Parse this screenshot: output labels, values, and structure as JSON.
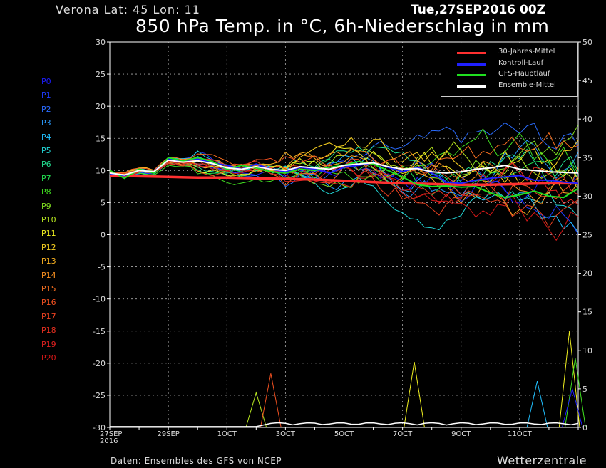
{
  "header": {
    "station": "Verona   Lat: 45 Lon: 11",
    "date": "Tue,27SEP2016 00Z",
    "title": "850 hPa Temp. in °C, 6h-Niederschlag in mm"
  },
  "footer": {
    "source": "Daten: Ensembles des GFS von NCEP",
    "brand": "Wetterzentrale"
  },
  "members": [
    {
      "label": "P0",
      "color": "#1c1cff"
    },
    {
      "label": "P1",
      "color": "#1f3cff"
    },
    {
      "label": "P2",
      "color": "#2a6cff"
    },
    {
      "label": "P3",
      "color": "#2a9cff"
    },
    {
      "label": "P4",
      "color": "#20c0ff"
    },
    {
      "label": "P5",
      "color": "#22d8d8"
    },
    {
      "label": "P6",
      "color": "#22e090"
    },
    {
      "label": "P7",
      "color": "#22e050"
    },
    {
      "label": "P8",
      "color": "#40e020"
    },
    {
      "label": "P9",
      "color": "#80e020"
    },
    {
      "label": "P10",
      "color": "#b8e820"
    },
    {
      "label": "P11",
      "color": "#f0f020"
    },
    {
      "label": "P12",
      "color": "#f8d020"
    },
    {
      "label": "P13",
      "color": "#f8b020"
    },
    {
      "label": "P14",
      "color": "#f89020"
    },
    {
      "label": "P15",
      "color": "#f87020"
    },
    {
      "label": "P16",
      "color": "#f05020"
    },
    {
      "label": "P17",
      "color": "#e84020"
    },
    {
      "label": "P18",
      "color": "#e83020"
    },
    {
      "label": "P19",
      "color": "#e02020"
    },
    {
      "label": "P20",
      "color": "#d81818"
    }
  ],
  "legend": [
    {
      "label": "30-Jahres-Mittel",
      "color": "#ff3030"
    },
    {
      "label": "Kontroll-Lauf",
      "color": "#2020ff"
    },
    {
      "label": "GFS-Hauptlauf",
      "color": "#20e020"
    },
    {
      "label": "Ensemble-Mittel",
      "color": "#ffffff"
    }
  ],
  "chart_data": {
    "type": "line",
    "x_ticks": [
      "27SEP\n2016",
      "29SEP",
      "1OCT",
      "3OCT",
      "5OCT",
      "7OCT",
      "9OCT",
      "11OCT"
    ],
    "x_day_range": [
      0,
      16
    ],
    "left_axis": {
      "label": "850 hPa Temp. °C",
      "ylim": [
        -30,
        30
      ],
      "ticks": [
        30,
        25,
        20,
        15,
        10,
        5,
        0,
        -5,
        -10,
        -15,
        -20,
        -25,
        -30
      ]
    },
    "right_axis": {
      "label": "6h-Niederschlag mm",
      "ylim": [
        0,
        50
      ],
      "ticks": [
        50,
        45,
        40,
        35,
        30,
        25,
        20,
        15,
        10,
        5,
        0
      ]
    },
    "grid": true,
    "legend_position": "top-right",
    "series": [
      {
        "name": "30-Jahres-Mittel",
        "role": "climatology",
        "x": [
          0,
          1,
          2,
          3,
          4,
          5,
          6,
          7,
          8,
          9,
          10,
          11,
          12,
          13,
          14,
          15,
          16
        ],
        "y": [
          9.2,
          9.1,
          9.0,
          8.9,
          8.9,
          8.8,
          8.7,
          8.6,
          8.4,
          8.2,
          8.0,
          7.9,
          7.8,
          7.8,
          7.9,
          8.0,
          8.0
        ]
      },
      {
        "name": "Kontroll-Lauf",
        "role": "control",
        "x": [
          0,
          0.5,
          1,
          1.5,
          2,
          2.5,
          3,
          3.5,
          4,
          4.5,
          5,
          5.5,
          6,
          6.5,
          7,
          7.5,
          8,
          8.5,
          9,
          9.5,
          10,
          10.5,
          11,
          11.5,
          12,
          12.5,
          13,
          13.5,
          14,
          14.5,
          15,
          15.5,
          16
        ],
        "y": [
          9.5,
          9.2,
          10,
          9.8,
          11.8,
          11.5,
          11.8,
          11.2,
          10.8,
          10.2,
          11,
          10.2,
          9.8,
          10.5,
          10.2,
          9.6,
          10.5,
          10.8,
          11.2,
          10.5,
          9.8,
          10.5,
          9.6,
          8.2,
          8.0,
          8.5,
          8.8,
          9.0,
          9.2,
          8.5,
          8.5,
          8.2,
          8.0
        ]
      },
      {
        "name": "GFS-Hauptlauf",
        "role": "main",
        "x": [
          0,
          0.5,
          1,
          1.5,
          2,
          2.5,
          3,
          3.5,
          4,
          4.5,
          5,
          5.5,
          6,
          6.5,
          7,
          7.5,
          8,
          8.5,
          9,
          9.5,
          10,
          10.5,
          11,
          11.5,
          12,
          12.5,
          13,
          13.5,
          14,
          14.5,
          15,
          15.5,
          16
        ],
        "y": [
          10,
          8.8,
          10.2,
          9.6,
          12,
          11.5,
          12,
          11.4,
          10.2,
          10.8,
          10.4,
          9.8,
          9.6,
          10.2,
          10,
          10.5,
          10.8,
          11.4,
          11,
          10,
          9,
          7.8,
          7.5,
          7.6,
          7.4,
          7.5,
          6.5,
          5.8,
          6.2,
          6.8,
          6.0,
          5.8,
          7.2
        ]
      },
      {
        "name": "Ensemble-Mittel",
        "role": "mean",
        "x": [
          0,
          0.5,
          1,
          1.5,
          2,
          2.5,
          3,
          3.5,
          4,
          4.5,
          5,
          5.5,
          6,
          6.5,
          7,
          7.5,
          8,
          8.5,
          9,
          9.5,
          10,
          10.5,
          11,
          11.5,
          12,
          12.5,
          13,
          13.5,
          14,
          14.5,
          15,
          15.5,
          16
        ],
        "y": [
          9.6,
          9.3,
          10,
          9.8,
          11.6,
          11.3,
          11.5,
          11.1,
          10.4,
          10.2,
          10.6,
          10.2,
          10,
          10.6,
          10.4,
          10.2,
          10.8,
          11,
          11.2,
          10.6,
          10.2,
          10.3,
          9.8,
          9.6,
          9.8,
          10.2,
          10.4,
          10.8,
          10.2,
          10.0,
          9.8,
          9.7,
          9.6
        ]
      }
    ],
    "precipitation_peaks_mm": [
      {
        "member": "P10",
        "day": 5.0,
        "value": 4.5
      },
      {
        "member": "P16",
        "day": 5.5,
        "value": 7.0
      },
      {
        "member": "P11",
        "day": 10.4,
        "value": 8.5
      },
      {
        "member": "P4",
        "day": 14.6,
        "value": 6.0
      },
      {
        "member": "P11",
        "day": 15.7,
        "value": 12.5
      },
      {
        "member": "P8",
        "day": 15.9,
        "value": 9.0
      },
      {
        "member": "Kontroll-Lauf",
        "day": 15.8,
        "value": 5.0
      }
    ]
  }
}
